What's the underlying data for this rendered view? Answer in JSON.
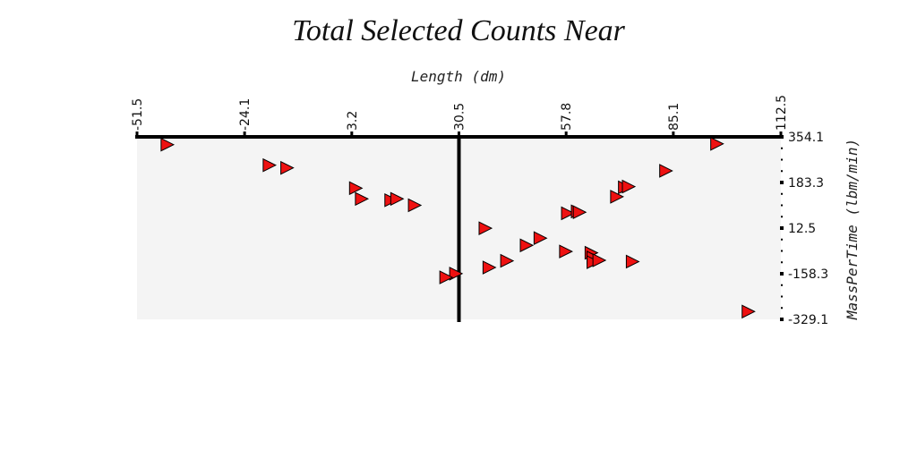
{
  "chart_data": {
    "type": "scatter",
    "title": "Total Selected Counts Near",
    "xlabel": "Length (dm)",
    "ylabel": "MassPerTime (lbm/min)",
    "x_ticks": [
      "-51.5",
      "-24.1",
      "3.2",
      "30.5",
      "57.8",
      "85.1",
      "112.5"
    ],
    "y_ticks": [
      "354.1",
      "183.3",
      "12.5",
      "-158.3",
      "-329.1"
    ],
    "xlim": [
      -51.5,
      112.5
    ],
    "ylim": [
      -329.1,
      354.1
    ],
    "x_axis_position": "top",
    "y_axis_position": "right",
    "reference_line_x": 30.5,
    "grid": false,
    "marker": "triangle-right",
    "marker_color": "#ee1111",
    "points": [
      {
        "x": -44.0,
        "y": 325
      },
      {
        "x": -18.0,
        "y": 248
      },
      {
        "x": -13.5,
        "y": 238
      },
      {
        "x": 4.0,
        "y": 162
      },
      {
        "x": 5.5,
        "y": 122
      },
      {
        "x": 13.0,
        "y": 117
      },
      {
        "x": 14.5,
        "y": 122
      },
      {
        "x": 19.0,
        "y": 98
      },
      {
        "x": 37.0,
        "y": 12
      },
      {
        "x": 51.0,
        "y": -25
      },
      {
        "x": 47.5,
        "y": -52
      },
      {
        "x": 57.5,
        "y": -75
      },
      {
        "x": 64.0,
        "y": -80
      },
      {
        "x": 64.5,
        "y": -98
      },
      {
        "x": 64.5,
        "y": -115
      },
      {
        "x": 66.0,
        "y": -108
      },
      {
        "x": 74.5,
        "y": -113
      },
      {
        "x": 42.5,
        "y": -110
      },
      {
        "x": 38.0,
        "y": -135
      },
      {
        "x": 29.5,
        "y": -158
      },
      {
        "x": 27.0,
        "y": -172
      },
      {
        "x": 58.0,
        "y": 68
      },
      {
        "x": 60.5,
        "y": 75
      },
      {
        "x": 61.0,
        "y": 72
      },
      {
        "x": 70.5,
        "y": 130
      },
      {
        "x": 72.5,
        "y": 165
      },
      {
        "x": 73.5,
        "y": 168
      },
      {
        "x": 83.0,
        "y": 227
      },
      {
        "x": 96.0,
        "y": 328
      },
      {
        "x": 104.0,
        "y": -300
      }
    ]
  }
}
